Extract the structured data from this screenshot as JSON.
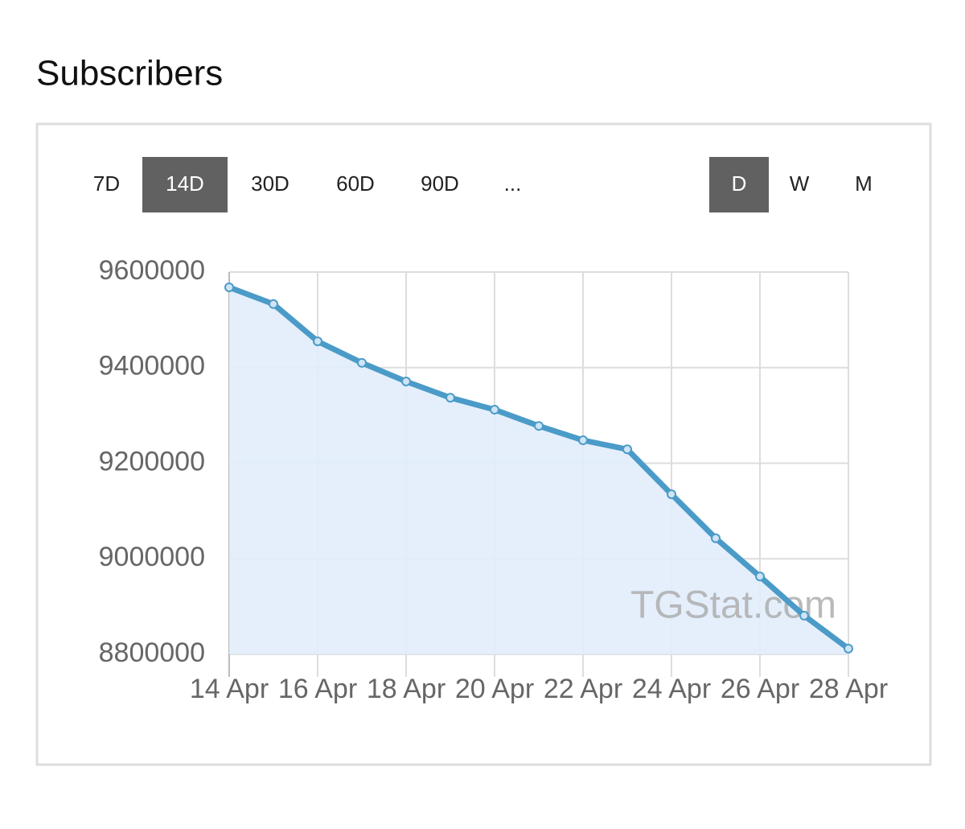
{
  "header": {
    "title": "Subscribers"
  },
  "period_buttons": [
    {
      "label": "7D",
      "selected": false
    },
    {
      "label": "14D",
      "selected": true
    },
    {
      "label": "30D",
      "selected": false
    },
    {
      "label": "60D",
      "selected": false
    },
    {
      "label": "90D",
      "selected": false
    },
    {
      "label": "...",
      "selected": false
    }
  ],
  "interval_buttons": [
    {
      "label": "D",
      "selected": true
    },
    {
      "label": "W",
      "selected": false
    },
    {
      "label": "M",
      "selected": false
    }
  ],
  "chart_data": {
    "type": "area",
    "categories": [
      "14 Apr",
      null,
      "16 Apr",
      null,
      "18 Apr",
      null,
      "20 Apr",
      null,
      "22 Apr",
      null,
      "24 Apr",
      null,
      "26 Apr",
      null,
      "28 Apr"
    ],
    "values": [
      9568000,
      9533000,
      9455000,
      9410000,
      9371000,
      9337000,
      9312000,
      9278000,
      9248000,
      9229000,
      9135000,
      9043000,
      8963000,
      8881000,
      8812000
    ],
    "color": "#4b9bc8",
    "fill": "#e1edfb",
    "ylim": [
      8800000,
      9600000
    ],
    "yticks": [
      8800000,
      9000000,
      9200000,
      9400000,
      9600000
    ],
    "grid": true,
    "watermark": "TGStat.com"
  }
}
